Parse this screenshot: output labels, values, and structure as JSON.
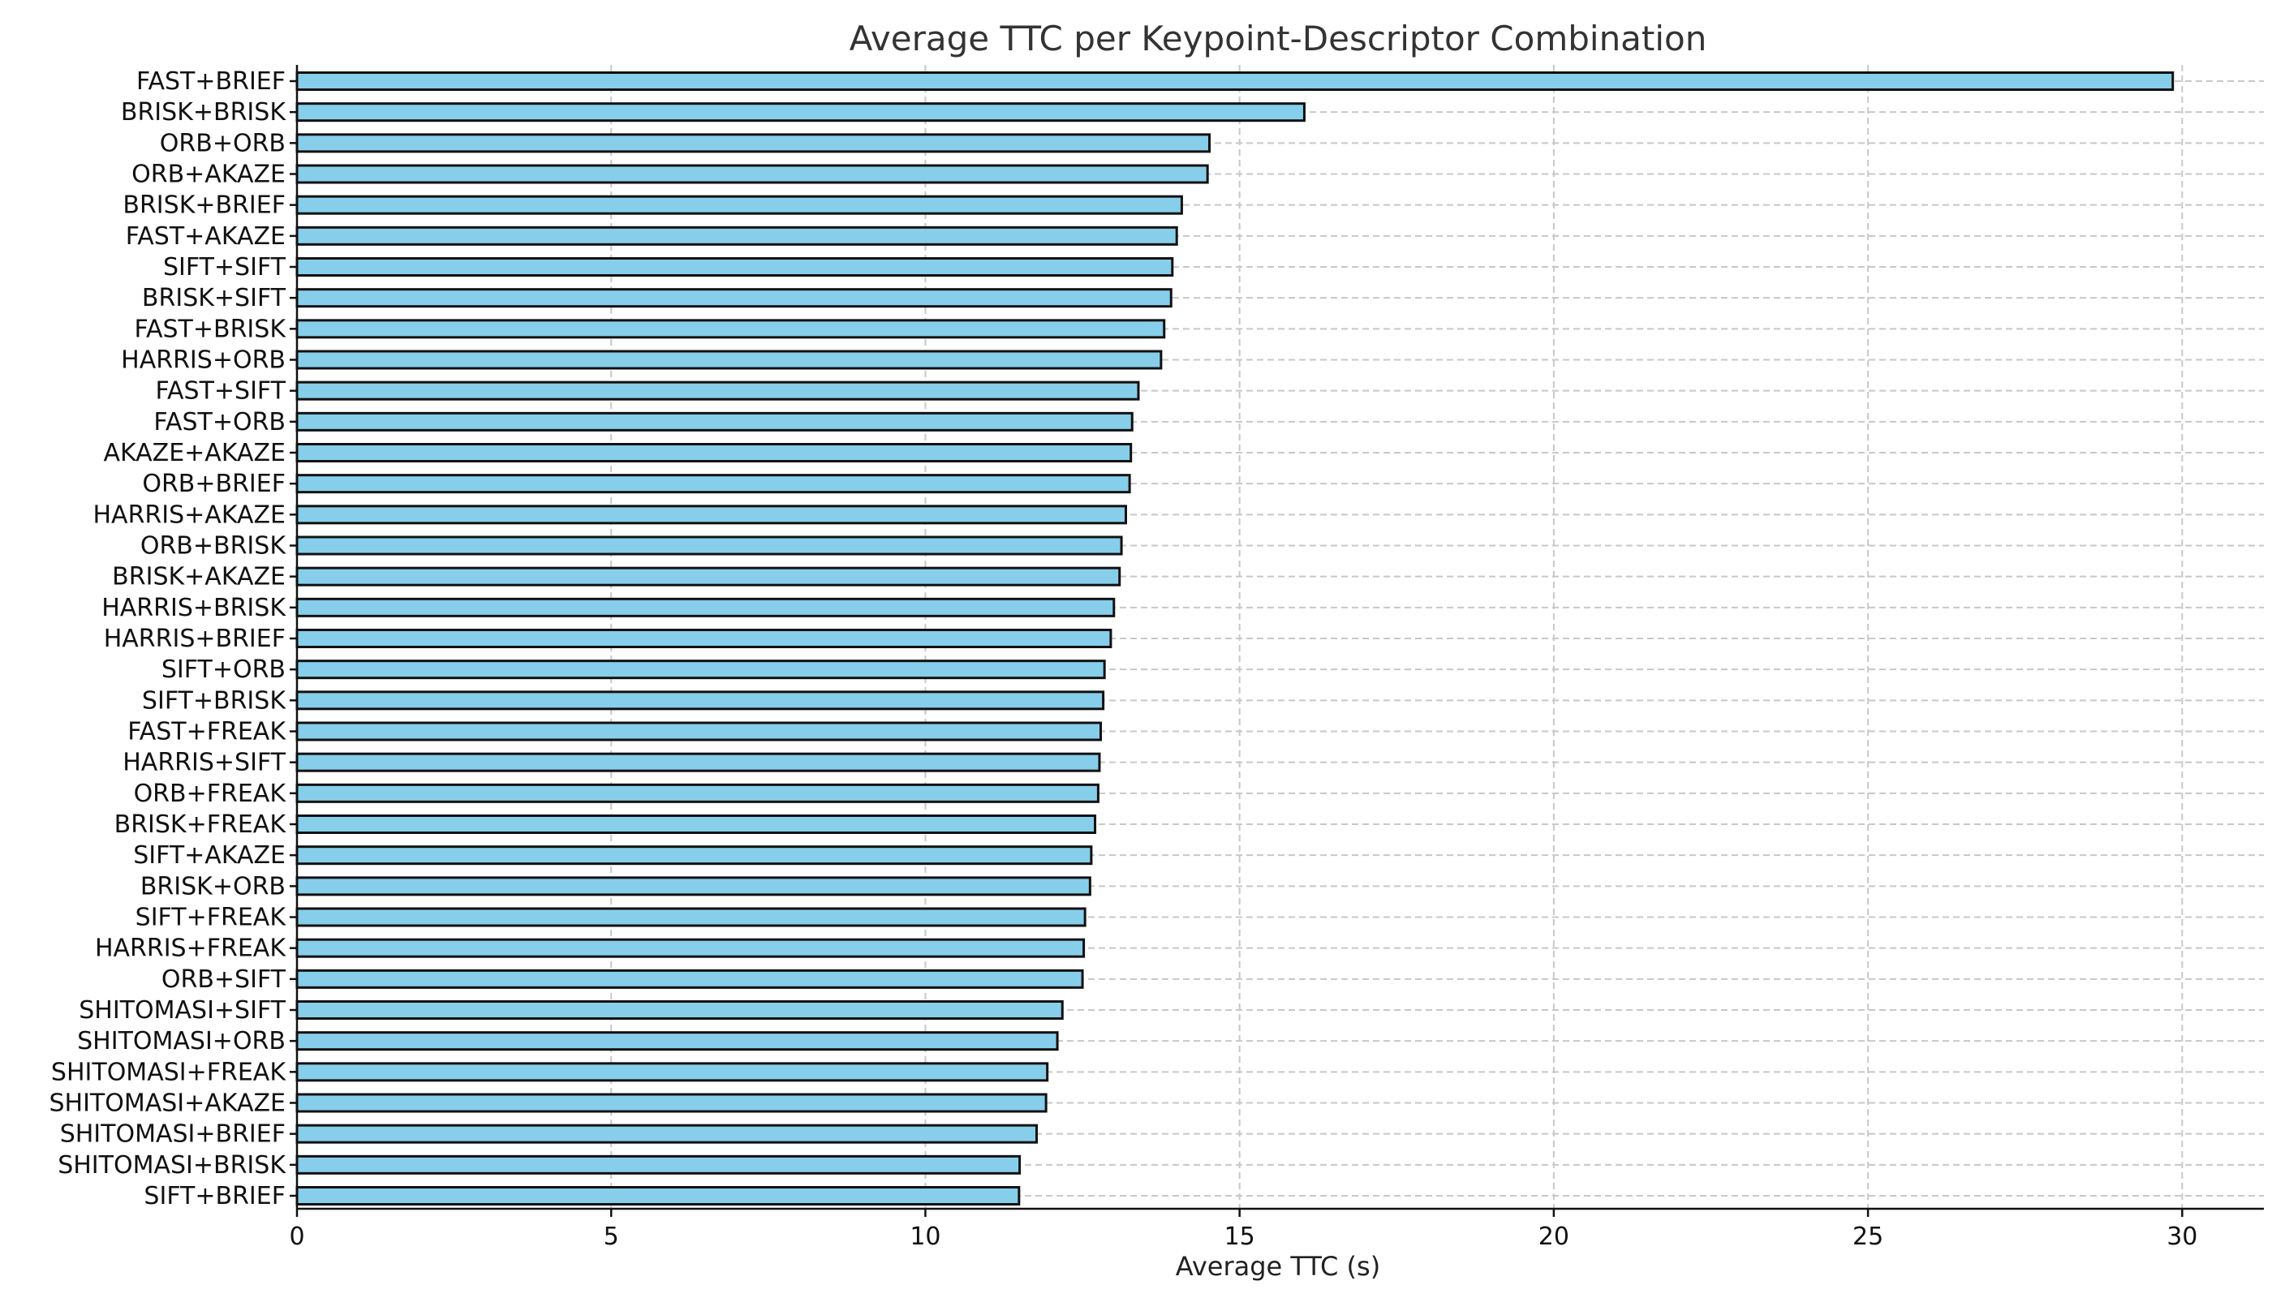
{
  "chart_data": {
    "type": "bar",
    "orientation": "horizontal",
    "title": "Average TTC per Keypoint-Descriptor Combination",
    "xlabel": "Average TTC (s)",
    "ylabel": "",
    "xlim": [
      0,
      31.3
    ],
    "xticks": [
      0,
      5,
      10,
      15,
      20,
      25,
      30
    ],
    "grid": true,
    "bar_color": "#87CEEB",
    "edge_color": "#111111",
    "categories": [
      "FAST+BRIEF",
      "BRISK+BRISK",
      "ORB+ORB",
      "ORB+AKAZE",
      "BRISK+BRIEF",
      "FAST+AKAZE",
      "SIFT+SIFT",
      "BRISK+SIFT",
      "FAST+BRISK",
      "HARRIS+ORB",
      "FAST+SIFT",
      "FAST+ORB",
      "AKAZE+AKAZE",
      "ORB+BRIEF",
      "HARRIS+AKAZE",
      "ORB+BRISK",
      "BRISK+AKAZE",
      "HARRIS+BRISK",
      "HARRIS+BRIEF",
      "SIFT+ORB",
      "SIFT+BRISK",
      "FAST+FREAK",
      "HARRIS+SIFT",
      "ORB+FREAK",
      "BRISK+FREAK",
      "SIFT+AKAZE",
      "BRISK+ORB",
      "SIFT+FREAK",
      "HARRIS+FREAK",
      "ORB+SIFT",
      "SHITOMASI+SIFT",
      "SHITOMASI+ORB",
      "SHITOMASI+FREAK",
      "SHITOMASI+AKAZE",
      "SHITOMASI+BRIEF",
      "SHITOMASI+BRISK",
      "SIFT+BRIEF"
    ],
    "values": [
      29.85,
      16.03,
      14.52,
      14.49,
      14.08,
      14.0,
      13.93,
      13.91,
      13.8,
      13.75,
      13.39,
      13.29,
      13.27,
      13.25,
      13.19,
      13.12,
      13.09,
      13.0,
      12.95,
      12.85,
      12.83,
      12.79,
      12.77,
      12.75,
      12.7,
      12.64,
      12.62,
      12.54,
      12.52,
      12.5,
      12.18,
      12.1,
      11.94,
      11.92,
      11.77,
      11.5,
      11.49
    ]
  }
}
